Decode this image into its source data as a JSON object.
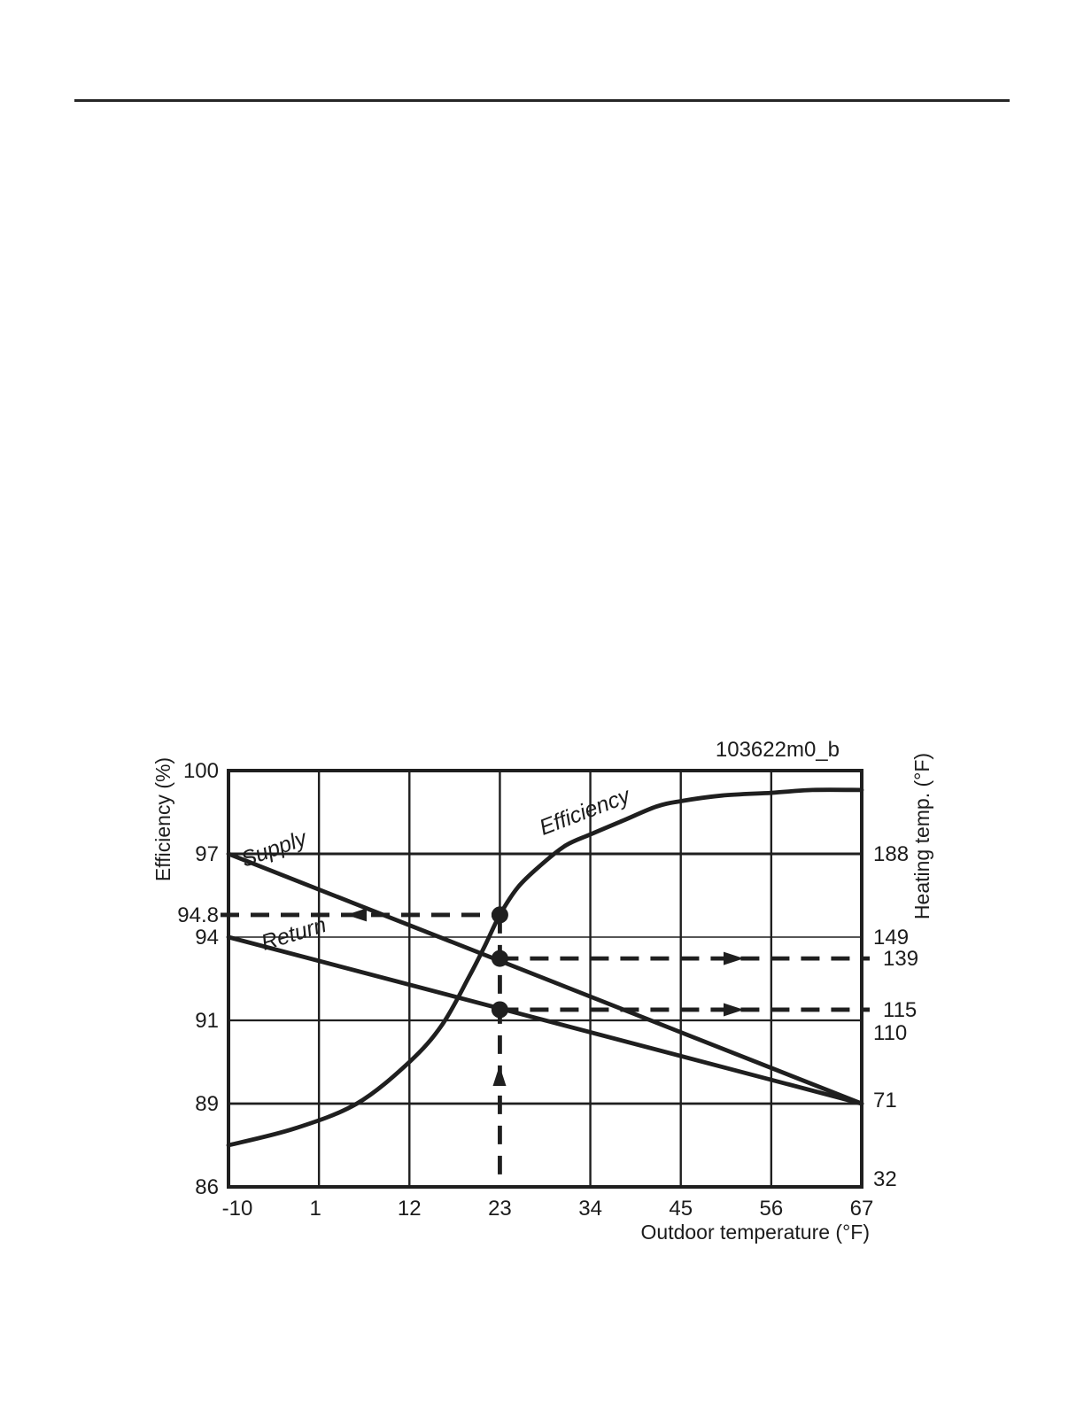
{
  "figure": {
    "id_label": "103622m0_b"
  },
  "chart_data": {
    "type": "line",
    "title": "",
    "xlabel": "Outdoor temperature (°F)",
    "ylabel_left": "Efficiency (%)",
    "ylabel_right": "Heating temp. (°F)",
    "grid": true,
    "legend": "inline-curve-labels",
    "xlim": [
      -10,
      67
    ],
    "x_ticks": [
      "-10",
      "1",
      "12",
      "23",
      "34",
      "45",
      "56",
      "67"
    ],
    "x_tick_values": [
      -10,
      1,
      12,
      23,
      34,
      45,
      56,
      67
    ],
    "left_axis": {
      "label": "Efficiency (%)",
      "gridline_values": [
        100,
        97,
        94,
        91,
        89,
        86
      ],
      "extra_tick": {
        "label": "94.8",
        "value": 94.8
      }
    },
    "right_axis": {
      "label": "Heating temp. (°F)",
      "value_at_row1": 188,
      "value_per_row": -39,
      "tick_rows": [
        {
          "label": "188",
          "row": 1
        },
        {
          "label": "149",
          "row": 2
        },
        {
          "label": "110",
          "row": 3,
          "dy": 14
        },
        {
          "label": "71",
          "row": 4,
          "dy": -4
        },
        {
          "label": "32",
          "row": 5,
          "dy": -9
        }
      ],
      "extra_ticks": [
        {
          "label": "139",
          "value": 139
        },
        {
          "label": "115",
          "value": 115
        }
      ]
    },
    "series": [
      {
        "name": "Supply",
        "axis": "right",
        "points": [
          [
            -10,
            188
          ],
          [
            67,
            71
          ]
        ]
      },
      {
        "name": "Return",
        "axis": "right",
        "points": [
          [
            -10,
            149
          ],
          [
            67,
            71
          ]
        ]
      },
      {
        "name": "Efficiency",
        "axis": "left",
        "points": [
          [
            -10,
            87.5
          ],
          [
            -2,
            88.1
          ],
          [
            5.6,
            89.0
          ],
          [
            12,
            90.0
          ],
          [
            16,
            90.9
          ],
          [
            19.3,
            92.6
          ],
          [
            21.2,
            93.7
          ],
          [
            23,
            94.8
          ],
          [
            25.2,
            95.8
          ],
          [
            28,
            96.6
          ],
          [
            31,
            97.3
          ],
          [
            34,
            97.7
          ],
          [
            38,
            98.2
          ],
          [
            42,
            98.7
          ],
          [
            45,
            98.9
          ],
          [
            50,
            99.1
          ],
          [
            56,
            99.2
          ],
          [
            61,
            99.3
          ],
          [
            67,
            99.3
          ]
        ]
      }
    ],
    "annotation": {
      "outdoor_temp": 23,
      "efficiency_pct": 94.8,
      "supply_temp_f": 139,
      "return_temp_f": 115
    }
  }
}
